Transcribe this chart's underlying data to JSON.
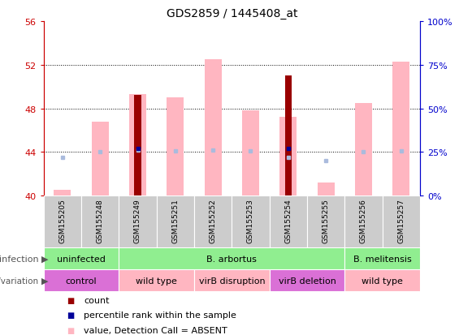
{
  "title": "GDS2859 / 1445408_at",
  "samples": [
    "GSM155205",
    "GSM155248",
    "GSM155249",
    "GSM155251",
    "GSM155252",
    "GSM155253",
    "GSM155254",
    "GSM155255",
    "GSM155256",
    "GSM155257"
  ],
  "ylim": [
    40,
    56
  ],
  "ylim_right": [
    0,
    100
  ],
  "yticks_left": [
    40,
    44,
    48,
    52,
    56
  ],
  "yticks_right": [
    0,
    25,
    50,
    75,
    100
  ],
  "count_values": [
    null,
    null,
    49.2,
    null,
    null,
    null,
    51.0,
    null,
    null,
    null
  ],
  "rank_values": [
    null,
    null,
    44.3,
    null,
    null,
    null,
    44.3,
    null,
    null,
    null
  ],
  "value_absent": [
    40.5,
    46.8,
    49.3,
    49.0,
    52.5,
    47.8,
    47.2,
    41.2,
    48.5,
    52.3
  ],
  "rank_absent": [
    43.5,
    44.0,
    44.2,
    44.1,
    44.2,
    44.1,
    43.5,
    43.2,
    44.0,
    44.1
  ],
  "infection_groups": [
    {
      "label": "uninfected",
      "cols": [
        0,
        1
      ],
      "color": "#90ee90"
    },
    {
      "label": "B. arbortus",
      "cols": [
        2,
        3,
        4,
        5,
        6,
        7
      ],
      "color": "#90ee90"
    },
    {
      "label": "B. melitensis",
      "cols": [
        8,
        9
      ],
      "color": "#90ee90"
    }
  ],
  "genotype_groups": [
    {
      "label": "control",
      "cols": [
        0,
        1
      ],
      "color": "#da70d6"
    },
    {
      "label": "wild type",
      "cols": [
        2,
        3
      ],
      "color": "#ffb6c1"
    },
    {
      "label": "virB disruption",
      "cols": [
        4,
        5
      ],
      "color": "#ffb6c1"
    },
    {
      "label": "virB deletion",
      "cols": [
        6,
        7
      ],
      "color": "#da70d6"
    },
    {
      "label": "wild type",
      "cols": [
        8,
        9
      ],
      "color": "#ffb6c1"
    }
  ],
  "bar_color_dark_red": "#990000",
  "bar_color_pink": "#ffb6c1",
  "bar_color_blue": "#000099",
  "bar_color_lightblue": "#aabbdd",
  "axis_color_left": "#cc0000",
  "axis_color_right": "#0000cc",
  "title_fontsize": 10,
  "tick_fontsize": 8,
  "label_fontsize": 8,
  "legend_fontsize": 8
}
